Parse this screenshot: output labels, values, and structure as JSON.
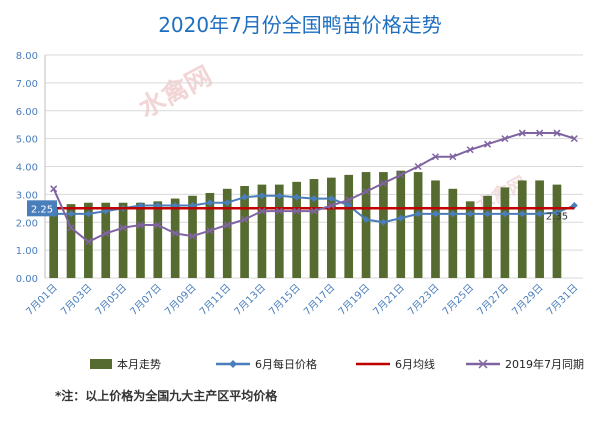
{
  "chart_data": {
    "type": "bar",
    "title": "2020年7月份全国鸭苗价格走势",
    "xlabel": "",
    "ylabel": "",
    "ylim": [
      0,
      8
    ],
    "yticks": [
      "0.00",
      "1.00",
      "2.00",
      "3.00",
      "4.00",
      "5.00",
      "6.00",
      "7.00",
      "8.00"
    ],
    "categories": [
      "7月01日",
      "7月02日",
      "7月03日",
      "7月04日",
      "7月05日",
      "7月06日",
      "7月07日",
      "7月08日",
      "7月09日",
      "7月10日",
      "7月11日",
      "7月12日",
      "7月13日",
      "7月14日",
      "7月15日",
      "7月16日",
      "7月17日",
      "7月18日",
      "7月19日",
      "7月20日",
      "7月21日",
      "7月22日",
      "7月23日",
      "7月24日",
      "7月25日",
      "7月26日",
      "7月27日",
      "7月28日",
      "7月29日",
      "7月30日",
      "7月31日"
    ],
    "xtick_labels": [
      "7月01日",
      "7月03日",
      "7月05日",
      "7月07日",
      "7月09日",
      "7月11日",
      "7月13日",
      "7月15日",
      "7月17日",
      "7月19日",
      "7月21日",
      "7月23日",
      "7月25日",
      "7月27日",
      "7月29日",
      "7月31日"
    ],
    "series": [
      {
        "name": "本月走势",
        "type": "bar",
        "color": "#556b2f",
        "values": [
          2.45,
          2.65,
          2.7,
          2.7,
          2.7,
          2.7,
          2.75,
          2.85,
          2.95,
          3.05,
          3.2,
          3.3,
          3.35,
          3.35,
          3.45,
          3.55,
          3.6,
          3.7,
          3.8,
          3.8,
          3.85,
          3.8,
          3.5,
          3.2,
          2.75,
          2.95,
          3.25,
          3.5,
          3.5,
          3.35,
          null
        ]
      },
      {
        "name": "6月每日价格",
        "type": "line",
        "color": "#4a7ebb",
        "values": [
          2.3,
          2.3,
          2.3,
          2.4,
          2.5,
          2.6,
          2.6,
          2.6,
          2.6,
          2.7,
          2.7,
          2.9,
          2.95,
          2.95,
          2.9,
          2.85,
          2.85,
          2.6,
          2.1,
          2.0,
          2.15,
          2.3,
          2.3,
          2.3,
          2.3,
          2.3,
          2.3,
          2.3,
          2.3,
          2.35,
          2.6
        ]
      },
      {
        "name": "6月均线",
        "type": "line",
        "color": "#c00000",
        "values": [
          2.5,
          2.5,
          2.5,
          2.5,
          2.5,
          2.5,
          2.5,
          2.5,
          2.5,
          2.5,
          2.5,
          2.5,
          2.5,
          2.5,
          2.5,
          2.5,
          2.5,
          2.5,
          2.5,
          2.5,
          2.5,
          2.5,
          2.5,
          2.5,
          2.5,
          2.5,
          2.5,
          2.5,
          2.5,
          2.5,
          2.5
        ]
      },
      {
        "name": "2019年7月同期",
        "type": "line",
        "color": "#8064a2",
        "values": [
          3.2,
          1.8,
          1.3,
          1.6,
          1.8,
          1.9,
          1.9,
          1.6,
          1.5,
          1.7,
          1.9,
          2.1,
          2.4,
          2.4,
          2.4,
          2.4,
          2.6,
          2.8,
          3.1,
          3.4,
          3.7,
          4.0,
          4.35,
          4.35,
          4.6,
          4.8,
          5.0,
          5.2,
          5.2,
          5.2,
          5.0
        ]
      }
    ],
    "data_labels": [
      {
        "text": "2.25",
        "background": "#4a7ebb"
      },
      {
        "text": "2.35"
      }
    ],
    "watermark": "水禽网",
    "grid": true,
    "legend_position": "bottom",
    "footnote": "*注：以上价格为全国九大主产区平均价格"
  }
}
